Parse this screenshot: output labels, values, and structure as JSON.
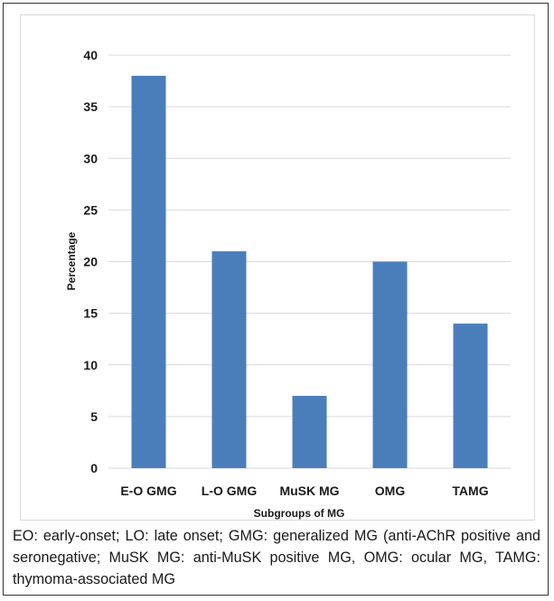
{
  "chart_data": {
    "type": "bar",
    "categories": [
      "E-O GMG",
      "L-O GMG",
      "MuSK MG",
      "OMG",
      "TAMG"
    ],
    "values": [
      38,
      21,
      7,
      20,
      14
    ],
    "xlabel": "Subgroups of MG",
    "ylabel": "Percentage",
    "ylim": [
      0,
      40
    ],
    "yticks": [
      0,
      5,
      10,
      15,
      20,
      25,
      30,
      35,
      40
    ],
    "grid": true,
    "legend": "none",
    "bar_color": "#4a7ebb",
    "grid_color": "#d9d9d9"
  },
  "caption": "EO: early-onset; LO: late onset; GMG: generalized MG (anti-AChR positive and seronegative; MuSK MG: anti-MuSK positive MG, OMG: ocular MG, TAMG: thymoma-associated MG"
}
